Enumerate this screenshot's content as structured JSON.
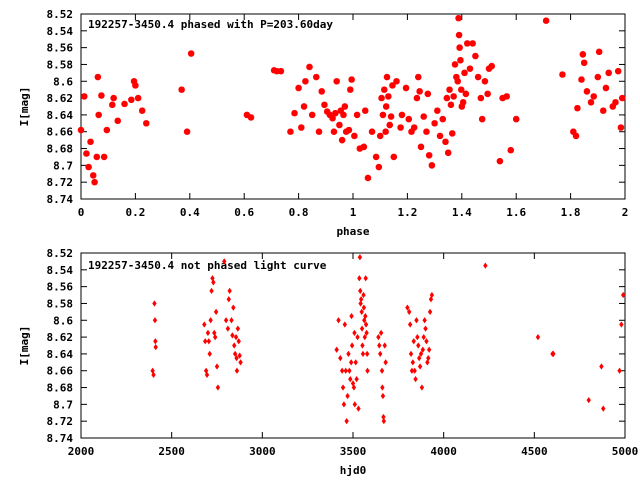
{
  "chart_data": [
    {
      "type": "scatter",
      "title": "192257-3450.4 phased with P=203.60day",
      "xlabel": "phase",
      "ylabel": "I[mag]",
      "xlim": [
        0,
        2
      ],
      "ylim": [
        8.52,
        8.74
      ],
      "y_reversed": true,
      "xticks": [
        "0",
        "0.2",
        "0.4",
        "0.6",
        "0.8",
        "1",
        "1.2",
        "1.4",
        "1.6",
        "1.8",
        "2"
      ],
      "yticks": [
        "8.52",
        "8.54",
        "8.56",
        "8.58",
        "8.6",
        "8.62",
        "8.64",
        "8.66",
        "8.68",
        "8.7",
        "8.72",
        "8.74"
      ],
      "marker_color": "#ff0000",
      "marker": "star",
      "grid": false,
      "points": [
        [
          0.0,
          8.658
        ],
        [
          0.012,
          8.618
        ],
        [
          0.02,
          8.686
        ],
        [
          0.028,
          8.702
        ],
        [
          0.035,
          8.672
        ],
        [
          0.045,
          8.712
        ],
        [
          0.05,
          8.72
        ],
        [
          0.058,
          8.69
        ],
        [
          0.062,
          8.595
        ],
        [
          0.065,
          8.64
        ],
        [
          0.075,
          8.617
        ],
        [
          0.085,
          8.69
        ],
        [
          0.095,
          8.658
        ],
        [
          0.115,
          8.628
        ],
        [
          0.12,
          8.62
        ],
        [
          0.135,
          8.647
        ],
        [
          0.16,
          8.627
        ],
        [
          0.185,
          8.622
        ],
        [
          0.195,
          8.6
        ],
        [
          0.2,
          8.605
        ],
        [
          0.21,
          8.62
        ],
        [
          0.225,
          8.635
        ],
        [
          0.24,
          8.65
        ],
        [
          0.37,
          8.61
        ],
        [
          0.39,
          8.66
        ],
        [
          0.405,
          8.567
        ],
        [
          0.61,
          8.64
        ],
        [
          0.625,
          8.643
        ],
        [
          0.71,
          8.587
        ],
        [
          0.72,
          8.588
        ],
        [
          0.735,
          8.588
        ],
        [
          0.77,
          8.66
        ],
        [
          0.785,
          8.638
        ],
        [
          0.8,
          8.608
        ],
        [
          0.81,
          8.655
        ],
        [
          0.82,
          8.63
        ],
        [
          0.825,
          8.6
        ],
        [
          0.84,
          8.583
        ],
        [
          0.85,
          8.64
        ],
        [
          0.865,
          8.595
        ],
        [
          0.875,
          8.66
        ],
        [
          0.885,
          8.612
        ],
        [
          0.895,
          8.628
        ],
        [
          0.905,
          8.636
        ],
        [
          0.915,
          8.64
        ],
        [
          0.925,
          8.644
        ],
        [
          0.93,
          8.66
        ],
        [
          0.935,
          8.638
        ],
        [
          0.94,
          8.6
        ],
        [
          0.95,
          8.652
        ],
        [
          0.955,
          8.635
        ],
        [
          0.96,
          8.67
        ],
        [
          0.965,
          8.64
        ],
        [
          0.97,
          8.63
        ],
        [
          0.975,
          8.66
        ],
        [
          0.985,
          8.658
        ],
        [
          0.99,
          8.61
        ],
        [
          0.995,
          8.598
        ],
        [
          1.005,
          8.665
        ],
        [
          1.015,
          8.64
        ],
        [
          1.025,
          8.68
        ],
        [
          1.04,
          8.678
        ],
        [
          1.045,
          8.635
        ],
        [
          1.055,
          8.715
        ],
        [
          1.07,
          8.66
        ],
        [
          1.085,
          8.69
        ],
        [
          1.095,
          8.702
        ],
        [
          1.1,
          8.665
        ],
        [
          1.105,
          8.62
        ],
        [
          1.11,
          8.64
        ],
        [
          1.115,
          8.61
        ],
        [
          1.12,
          8.66
        ],
        [
          1.122,
          8.63
        ],
        [
          1.125,
          8.595
        ],
        [
          1.13,
          8.618
        ],
        [
          1.135,
          8.652
        ],
        [
          1.14,
          8.642
        ],
        [
          1.145,
          8.605
        ],
        [
          1.15,
          8.69
        ],
        [
          1.16,
          8.6
        ],
        [
          1.175,
          8.655
        ],
        [
          1.18,
          8.64
        ],
        [
          1.195,
          8.608
        ],
        [
          1.205,
          8.645
        ],
        [
          1.215,
          8.66
        ],
        [
          1.225,
          8.655
        ],
        [
          1.235,
          8.62
        ],
        [
          1.24,
          8.595
        ],
        [
          1.245,
          8.612
        ],
        [
          1.25,
          8.678
        ],
        [
          1.26,
          8.642
        ],
        [
          1.27,
          8.66
        ],
        [
          1.275,
          8.615
        ],
        [
          1.28,
          8.688
        ],
        [
          1.29,
          8.7
        ],
        [
          1.3,
          8.65
        ],
        [
          1.31,
          8.635
        ],
        [
          1.32,
          8.665
        ],
        [
          1.33,
          8.645
        ],
        [
          1.34,
          8.672
        ],
        [
          1.345,
          8.62
        ],
        [
          1.35,
          8.685
        ],
        [
          1.355,
          8.61
        ],
        [
          1.36,
          8.628
        ],
        [
          1.365,
          8.662
        ],
        [
          1.37,
          8.618
        ],
        [
          1.375,
          8.58
        ],
        [
          1.38,
          8.595
        ],
        [
          1.385,
          8.6
        ],
        [
          1.388,
          8.525
        ],
        [
          1.39,
          8.545
        ],
        [
          1.392,
          8.56
        ],
        [
          1.395,
          8.575
        ],
        [
          1.398,
          8.61
        ],
        [
          1.4,
          8.63
        ],
        [
          1.405,
          8.625
        ],
        [
          1.41,
          8.59
        ],
        [
          1.415,
          8.615
        ],
        [
          1.42,
          8.555
        ],
        [
          1.43,
          8.585
        ],
        [
          1.44,
          8.555
        ],
        [
          1.45,
          8.57
        ],
        [
          1.46,
          8.595
        ],
        [
          1.47,
          8.62
        ],
        [
          1.475,
          8.645
        ],
        [
          1.485,
          8.6
        ],
        [
          1.495,
          8.615
        ],
        [
          1.5,
          8.585
        ],
        [
          1.51,
          8.582
        ],
        [
          1.54,
          8.695
        ],
        [
          1.55,
          8.62
        ],
        [
          1.565,
          8.618
        ],
        [
          1.58,
          8.682
        ],
        [
          1.6,
          8.645
        ],
        [
          1.71,
          8.528
        ],
        [
          1.77,
          8.592
        ],
        [
          1.81,
          8.66
        ],
        [
          1.82,
          8.665
        ],
        [
          1.825,
          8.632
        ],
        [
          1.84,
          8.598
        ],
        [
          1.845,
          8.568
        ],
        [
          1.85,
          8.578
        ],
        [
          1.86,
          8.612
        ],
        [
          1.875,
          8.625
        ],
        [
          1.885,
          8.618
        ],
        [
          1.9,
          8.595
        ],
        [
          1.905,
          8.565
        ],
        [
          1.92,
          8.635
        ],
        [
          1.93,
          8.608
        ],
        [
          1.94,
          8.59
        ],
        [
          1.955,
          8.63
        ],
        [
          1.965,
          8.625
        ],
        [
          1.975,
          8.588
        ],
        [
          1.985,
          8.655
        ],
        [
          1.99,
          8.62
        ]
      ]
    },
    {
      "type": "scatter",
      "title": "192257-3450.4 not phased light curve",
      "xlabel": "hjd0",
      "ylabel": "I[mag]",
      "xlim": [
        2000,
        5000
      ],
      "ylim": [
        8.52,
        8.74
      ],
      "y_reversed": true,
      "xticks": [
        "2000",
        "2500",
        "3000",
        "3500",
        "4000",
        "4500",
        "5000"
      ],
      "yticks": [
        "8.52",
        "8.54",
        "8.56",
        "8.58",
        "8.6",
        "8.62",
        "8.64",
        "8.66",
        "8.68",
        "8.7",
        "8.72",
        "8.74"
      ],
      "marker_color": "#ff0000",
      "marker": "diamond",
      "grid": false,
      "points": [
        [
          2395,
          8.66
        ],
        [
          2400,
          8.665
        ],
        [
          2405,
          8.58
        ],
        [
          2408,
          8.6
        ],
        [
          2410,
          8.625
        ],
        [
          2412,
          8.632
        ],
        [
          2680,
          8.605
        ],
        [
          2685,
          8.625
        ],
        [
          2690,
          8.66
        ],
        [
          2695,
          8.665
        ],
        [
          2700,
          8.615
        ],
        [
          2705,
          8.625
        ],
        [
          2710,
          8.64
        ],
        [
          2715,
          8.6
        ],
        [
          2720,
          8.565
        ],
        [
          2725,
          8.55
        ],
        [
          2730,
          8.555
        ],
        [
          2735,
          8.615
        ],
        [
          2740,
          8.62
        ],
        [
          2745,
          8.59
        ],
        [
          2750,
          8.655
        ],
        [
          2755,
          8.68
        ],
        [
          2790,
          8.53
        ],
        [
          2800,
          8.6
        ],
        [
          2810,
          8.61
        ],
        [
          2815,
          8.575
        ],
        [
          2820,
          8.565
        ],
        [
          2830,
          8.6
        ],
        [
          2835,
          8.618
        ],
        [
          2840,
          8.585
        ],
        [
          2845,
          8.63
        ],
        [
          2850,
          8.64
        ],
        [
          2855,
          8.62
        ],
        [
          2858,
          8.645
        ],
        [
          2860,
          8.66
        ],
        [
          2865,
          8.61
        ],
        [
          2870,
          8.625
        ],
        [
          2875,
          8.642
        ],
        [
          2880,
          8.65
        ],
        [
          3410,
          8.635
        ],
        [
          3420,
          8.6
        ],
        [
          3430,
          8.645
        ],
        [
          3440,
          8.66
        ],
        [
          3445,
          8.68
        ],
        [
          3450,
          8.7
        ],
        [
          3455,
          8.605
        ],
        [
          3460,
          8.66
        ],
        [
          3465,
          8.72
        ],
        [
          3470,
          8.69
        ],
        [
          3475,
          8.64
        ],
        [
          3480,
          8.66
        ],
        [
          3485,
          8.67
        ],
        [
          3490,
          8.65
        ],
        [
          3492,
          8.595
        ],
        [
          3495,
          8.63
        ],
        [
          3500,
          8.675
        ],
        [
          3505,
          8.68
        ],
        [
          3508,
          8.615
        ],
        [
          3510,
          8.7
        ],
        [
          3515,
          8.65
        ],
        [
          3520,
          8.67
        ],
        [
          3525,
          8.62
        ],
        [
          3530,
          8.705
        ],
        [
          3535,
          8.55
        ],
        [
          3538,
          8.525
        ],
        [
          3540,
          8.565
        ],
        [
          3542,
          8.58
        ],
        [
          3545,
          8.575
        ],
        [
          3548,
          8.59
        ],
        [
          3550,
          8.61
        ],
        [
          3552,
          8.63
        ],
        [
          3555,
          8.64
        ],
        [
          3558,
          8.57
        ],
        [
          3560,
          8.585
        ],
        [
          3562,
          8.6
        ],
        [
          3565,
          8.62
        ],
        [
          3568,
          8.595
        ],
        [
          3570,
          8.55
        ],
        [
          3572,
          8.605
        ],
        [
          3575,
          8.615
        ],
        [
          3578,
          8.64
        ],
        [
          3580,
          8.66
        ],
        [
          3640,
          8.62
        ],
        [
          3645,
          8.63
        ],
        [
          3650,
          8.64
        ],
        [
          3655,
          8.615
        ],
        [
          3660,
          8.66
        ],
        [
          3662,
          8.68
        ],
        [
          3665,
          8.69
        ],
        [
          3668,
          8.715
        ],
        [
          3670,
          8.72
        ],
        [
          3675,
          8.63
        ],
        [
          3680,
          8.65
        ],
        [
          3800,
          8.585
        ],
        [
          3810,
          8.59
        ],
        [
          3815,
          8.605
        ],
        [
          3820,
          8.64
        ],
        [
          3825,
          8.66
        ],
        [
          3830,
          8.65
        ],
        [
          3835,
          8.625
        ],
        [
          3840,
          8.66
        ],
        [
          3845,
          8.67
        ],
        [
          3850,
          8.6
        ],
        [
          3855,
          8.62
        ],
        [
          3860,
          8.63
        ],
        [
          3865,
          8.645
        ],
        [
          3870,
          8.655
        ],
        [
          3875,
          8.64
        ],
        [
          3880,
          8.68
        ],
        [
          3885,
          8.635
        ],
        [
          3890,
          8.62
        ],
        [
          3895,
          8.6
        ],
        [
          3900,
          8.61
        ],
        [
          3905,
          8.625
        ],
        [
          3910,
          8.65
        ],
        [
          3915,
          8.645
        ],
        [
          3920,
          8.635
        ],
        [
          3925,
          8.59
        ],
        [
          3930,
          8.575
        ],
        [
          3935,
          8.57
        ],
        [
          4230,
          8.535
        ],
        [
          4520,
          8.62
        ],
        [
          4600,
          8.64
        ],
        [
          4605,
          8.64
        ],
        [
          4800,
          8.695
        ],
        [
          4870,
          8.655
        ],
        [
          4880,
          8.705
        ],
        [
          4970,
          8.66
        ],
        [
          4980,
          8.605
        ],
        [
          4990,
          8.57
        ]
      ]
    }
  ]
}
